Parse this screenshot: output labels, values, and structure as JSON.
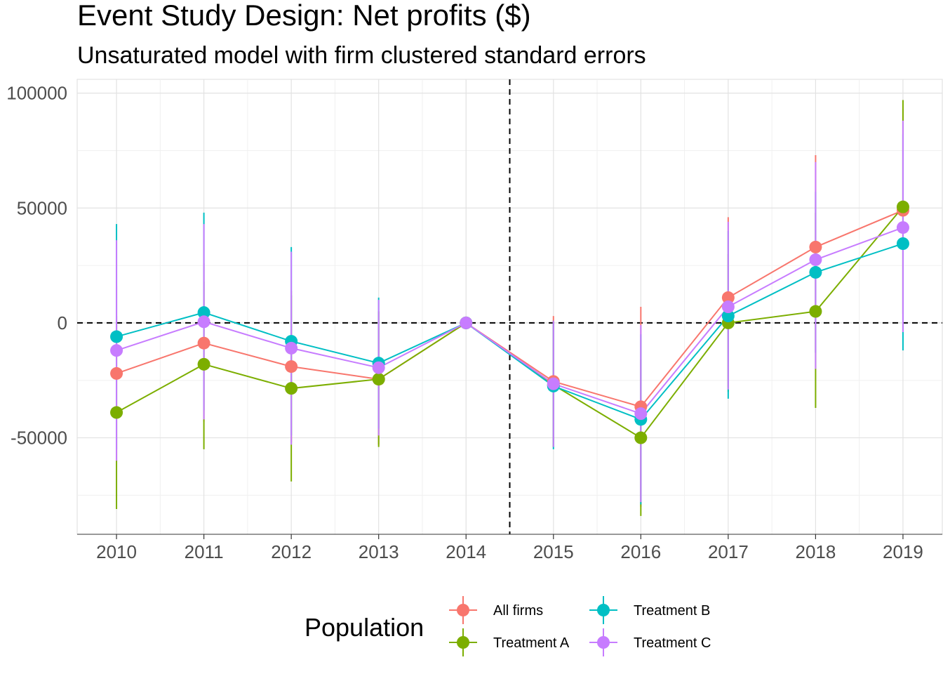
{
  "chart_data": {
    "type": "line",
    "title": "Event Study Design: Net profits  ($)",
    "subtitle": "Unsaturated model with firm clustered standard errors",
    "xlabel": "",
    "ylabel": "",
    "x": [
      2010,
      2011,
      2012,
      2013,
      2014,
      2015,
      2016,
      2017,
      2018,
      2019
    ],
    "xticks": [
      "2010",
      "2011",
      "2012",
      "2013",
      "2014",
      "2015",
      "2016",
      "2017",
      "2018",
      "2019"
    ],
    "yticks": [
      {
        "value": 100000,
        "label": "100000"
      },
      {
        "value": 50000,
        "label": "50000"
      },
      {
        "value": 0,
        "label": "0"
      },
      {
        "value": -50000,
        "label": "-50000"
      }
    ],
    "ylim": [
      -92000,
      106000
    ],
    "xlim": [
      2009.55,
      2019.45
    ],
    "grid": true,
    "reference_lines": {
      "h": 0,
      "v": 2014.5
    },
    "legend": {
      "title": "Population",
      "position": "bottom"
    },
    "series": [
      {
        "name": "All firms",
        "color": "#F8766D",
        "values": [
          -22000,
          -8800,
          -19000,
          -24500,
          0,
          -25500,
          -36500,
          11000,
          33000,
          49000
        ],
        "lower": [
          -60000,
          -43000,
          -52000,
          -53000,
          0,
          -54000,
          -80000,
          -28000,
          -13000,
          -4000
        ],
        "upper": [
          16000,
          26000,
          14000,
          5000,
          0,
          3000,
          7000,
          46000,
          73000,
          93000
        ]
      },
      {
        "name": "Treatment A",
        "color": "#7CAE00",
        "values": [
          -39000,
          -18000,
          -28500,
          -24500,
          0,
          -27000,
          -50000,
          0,
          5000,
          50500
        ],
        "lower": [
          -81000,
          -55000,
          -69000,
          -54000,
          0,
          -54000,
          -84000,
          -30000,
          -37000,
          4000
        ],
        "upper": [
          3000,
          18000,
          12000,
          5000,
          0,
          1000,
          -16000,
          30000,
          48000,
          97000
        ]
      },
      {
        "name": "Treatment B",
        "color": "#00BFC4",
        "values": [
          -6000,
          4500,
          -8000,
          -17500,
          0,
          -27500,
          -42000,
          3000,
          22000,
          34500
        ],
        "lower": [
          -55000,
          -38000,
          -49000,
          -46000,
          0,
          -55000,
          -79000,
          -33000,
          -13000,
          -12000
        ],
        "upper": [
          43000,
          48000,
          33000,
          11000,
          0,
          0,
          -5000,
          40000,
          57000,
          82000
        ]
      },
      {
        "name": "Treatment C",
        "color": "#C77CFF",
        "values": [
          -12000,
          500,
          -11000,
          -19500,
          0,
          -26500,
          -39500,
          7000,
          27500,
          41500
        ],
        "lower": [
          -60000,
          -42000,
          -53000,
          -49000,
          0,
          -54000,
          -78000,
          -29000,
          -20000,
          -4000
        ],
        "upper": [
          36000,
          43000,
          31000,
          10000,
          0,
          1000,
          -1000,
          44000,
          70000,
          88000
        ]
      }
    ]
  }
}
